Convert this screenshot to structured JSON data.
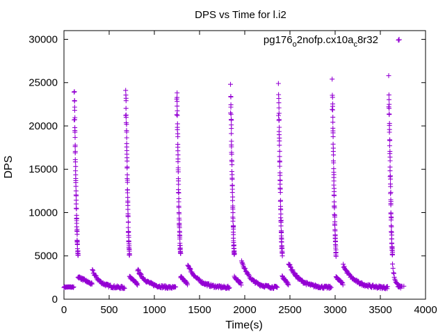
{
  "chart_data": {
    "type": "scatter",
    "title": "DPS vs Time for l.i2",
    "xlabel": "Time(s)",
    "ylabel": "DPS",
    "xlim": [
      0,
      4000
    ],
    "ylim": [
      0,
      31000
    ],
    "xticks": [
      0,
      500,
      1000,
      1500,
      2000,
      2500,
      3000,
      3500,
      4000
    ],
    "xtick_labels": [
      "0",
      "500",
      "1000",
      "1500",
      "2000",
      "2500",
      "3000",
      "3500",
      "4000"
    ],
    "yticks": [
      0,
      5000,
      10000,
      15000,
      20000,
      25000,
      30000
    ],
    "ytick_labels": [
      "0",
      "5000",
      "10000",
      "15000",
      "20000",
      "25000",
      "30000"
    ],
    "grid": false,
    "legend_position": "top-right",
    "legend_label_parts": [
      "pg176",
      "o",
      "2nofp.cx10a",
      "c",
      "8r32"
    ],
    "series_color": "#9400d3",
    "marker": "plus",
    "cycle_starts": [
      110,
      680,
      1245,
      1840,
      2370,
      2965,
      3590
    ],
    "cycle_peaks": [
      23900,
      24100,
      23100,
      24800,
      24900,
      25400,
      25800
    ],
    "cycle_second": [
      20700,
      21200,
      21300,
      21500,
      21200,
      21900,
      22200
    ],
    "cycle_ends": [
      680,
      1245,
      1840,
      2370,
      2965,
      3590,
      3750
    ],
    "secondary_peak_offsets": [
      160,
      90,
      80,
      80,
      70,
      80,
      0
    ],
    "secondary_peak_values": [
      3300,
      3400,
      4000,
      4500,
      4200,
      3900,
      4000
    ],
    "baseline_start": [
      0,
      1400
    ],
    "outlier_point": [
      3700,
      29900
    ],
    "final_point": [
      3760,
      1500
    ]
  }
}
